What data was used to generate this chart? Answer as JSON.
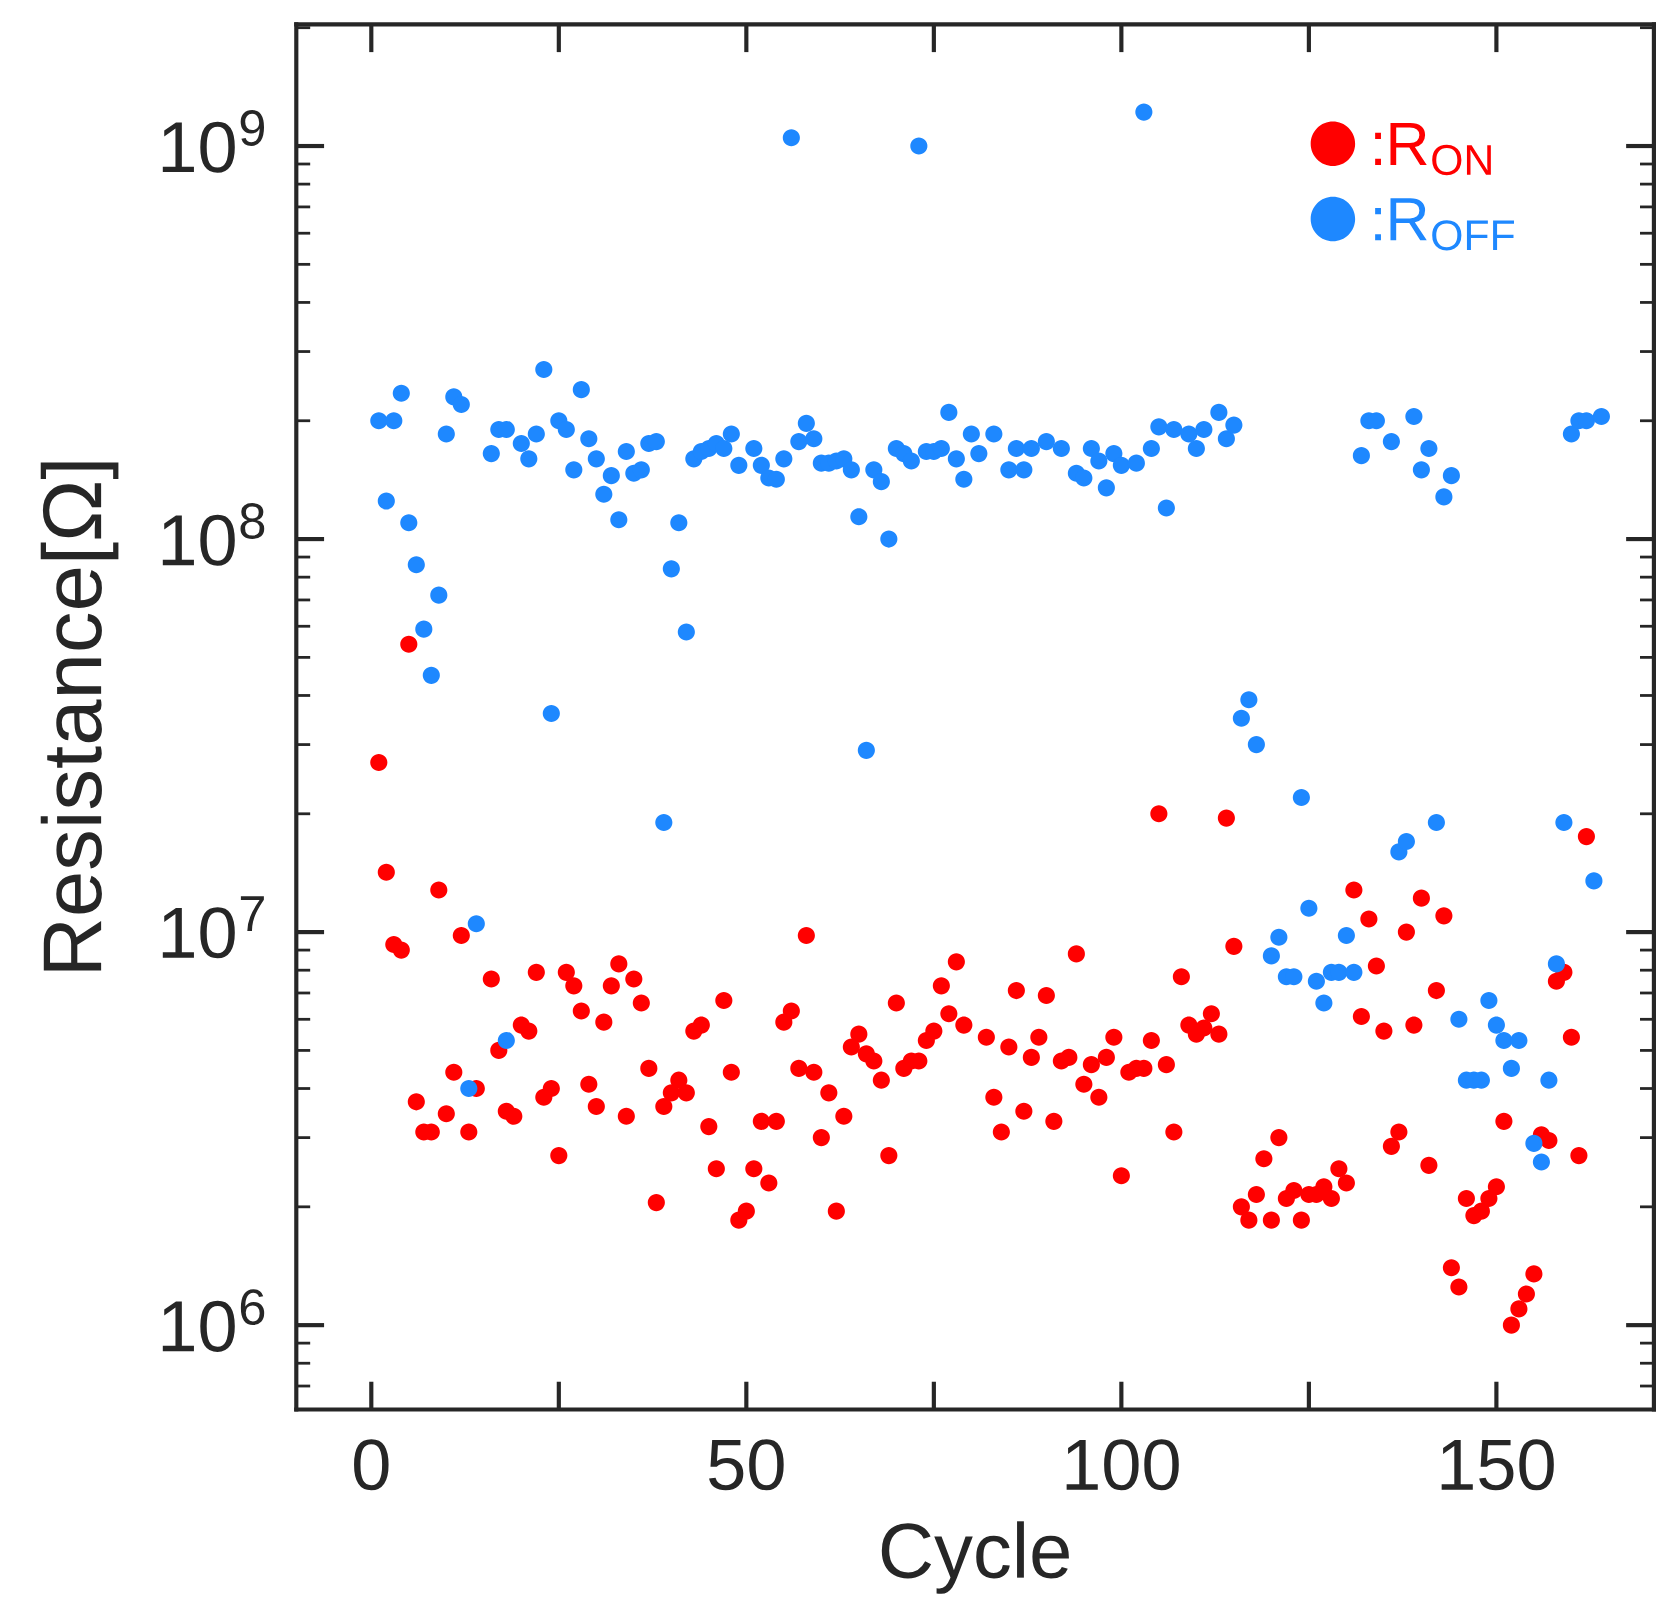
{
  "chart_data": {
    "type": "scatter",
    "xlabel": "Cycle",
    "ylabel": "Resistance[Ω]",
    "xlim": [
      -10,
      171
    ],
    "xticks": [
      0,
      {
        "value": 25,
        "label": null
      },
      50,
      {
        "value": 75,
        "label": null
      },
      100,
      {
        "value": 125,
        "label": null
      },
      150
    ],
    "ylim": [
      610000,
      2040000000
    ],
    "yticks": [
      {
        "value": 1000000,
        "label": "10$^{6}$"
      },
      {
        "value": 10000000,
        "label": "10$^{7}$"
      },
      {
        "value": 100000000,
        "label": "10$^{8}$"
      },
      {
        "value": 1000000000,
        "label": "10$^{9}$"
      }
    ],
    "log": "y",
    "grid": false,
    "legend": "top right",
    "marker": "circle",
    "series": [
      {
        "name": ":R$_{ON}$",
        "color": "#ff0000",
        "x": [
          1,
          2,
          3,
          4,
          5,
          6,
          7,
          8,
          9,
          10,
          11,
          12,
          13,
          14,
          16,
          17,
          18,
          19,
          20,
          21,
          22,
          23,
          24,
          25,
          26,
          27,
          28,
          29,
          30,
          31,
          32,
          33,
          34,
          35,
          36,
          37,
          38,
          39,
          40,
          41,
          42,
          43,
          44,
          45,
          46,
          47,
          48,
          49,
          50,
          51,
          52,
          53,
          54,
          55,
          56,
          57,
          58,
          59,
          60,
          61,
          62,
          63,
          64,
          65,
          66,
          67,
          68,
          69,
          70,
          71,
          72,
          73,
          74,
          75,
          76,
          77,
          78,
          79,
          82,
          83,
          84,
          85,
          86,
          87,
          88,
          89,
          90,
          91,
          92,
          93,
          94,
          95,
          96,
          97,
          98,
          99,
          100,
          101,
          102,
          103,
          104,
          105,
          106,
          107,
          108,
          109,
          110,
          111,
          112,
          113,
          114,
          115,
          116,
          117,
          118,
          119,
          120,
          121,
          122,
          123,
          124,
          125,
          126,
          127,
          128,
          129,
          130,
          131,
          132,
          133,
          134,
          135,
          136,
          137,
          138,
          139,
          140,
          141,
          142,
          143,
          144,
          145,
          146,
          147,
          148,
          149,
          150,
          151,
          152,
          153,
          154,
          155,
          156,
          157,
          158,
          159,
          160,
          161,
          162
        ],
        "values": [
          27000000,
          14200000,
          9300000,
          9000000,
          54000000,
          3700000,
          3100000,
          3100000,
          12800000,
          3450000,
          4400000,
          9800000,
          3100000,
          4000000,
          7600000,
          5000000,
          3500000,
          3400000,
          5800000,
          5600000,
          7900000,
          3800000,
          4000000,
          2700000,
          7900000,
          7300000,
          6300000,
          4100000,
          3600000,
          5900000,
          7300000,
          8300000,
          3400000,
          7600000,
          6600000,
          4500000,
          2050000,
          3600000,
          3900000,
          4200000,
          3900000,
          5600000,
          5800000,
          3200000,
          2500000,
          6700000,
          4400000,
          1850000,
          1950000,
          2500000,
          3300000,
          2300000,
          3300000,
          5900000,
          6300000,
          4500000,
          9800000,
          4400000,
          3000000,
          3900000,
          1950000,
          3400000,
          5100000,
          5500000,
          4900000,
          4700000,
          4200000,
          2700000,
          6600000,
          4500000,
          4700000,
          4700000,
          5300000,
          5600000,
          7300000,
          6200000,
          8400000,
          5800000,
          5400000,
          3800000,
          3100000,
          5100000,
          7100000,
          3500000,
          4800000,
          5400000,
          6900000,
          3300000,
          4700000,
          4800000,
          8800000,
          4100000,
          4600000,
          3800000,
          4800000,
          5400000,
          2400000,
          4400000,
          4500000,
          4500000,
          5300000,
          20000000,
          4600000,
          3100000,
          7700000,
          5800000,
          5500000,
          5700000,
          6200000,
          5500000,
          19500000,
          9200000,
          2000000,
          1850000,
          2150000,
          2650000,
          1850000,
          3000000,
          2100000,
          2200000,
          1850000,
          2150000,
          2150000,
          2250000,
          2100000,
          2500000,
          2300000,
          12800000,
          6100000,
          10800000,
          8200000,
          5600000,
          2850000,
          3100000,
          10000000,
          5800000,
          12200000,
          2550000,
          7100000,
          11000000,
          1400000,
          1250000,
          2100000,
          1900000,
          1950000,
          2100000,
          2250000,
          3300000,
          1000000,
          1100000,
          1200000,
          1350000,
          3050000,
          2950000,
          7500000,
          7900000,
          5400000,
          2700000,
          17500000
        ]
      },
      {
        "name": ":R$_{OFF}$",
        "color": "#1e88ff",
        "x": [
          1,
          2,
          3,
          4,
          5,
          6,
          7,
          8,
          9,
          10,
          11,
          12,
          13,
          14,
          16,
          17,
          18,
          18,
          20,
          21,
          22,
          23,
          24,
          25,
          26,
          27,
          28,
          29,
          30,
          31,
          32,
          33,
          34,
          35,
          36,
          37,
          38,
          39,
          40,
          41,
          42,
          43,
          44,
          45,
          46,
          47,
          48,
          49,
          51,
          52,
          53,
          54,
          55,
          56,
          57,
          58,
          59,
          60,
          61,
          62,
          63,
          64,
          65,
          66,
          67,
          68,
          69,
          70,
          71,
          72,
          73,
          74,
          75,
          76,
          77,
          78,
          79,
          80,
          81,
          83,
          85,
          86,
          87,
          88,
          90,
          92,
          94,
          95,
          96,
          97,
          98,
          99,
          100,
          102,
          103,
          104,
          105,
          106,
          107,
          109,
          110,
          111,
          113,
          114,
          115,
          116,
          117,
          118,
          120,
          121,
          122,
          123,
          124,
          125,
          126,
          127,
          128,
          129,
          130,
          131,
          132,
          133,
          134,
          136,
          137,
          138,
          139,
          140,
          141,
          142,
          143,
          144,
          145,
          146,
          147,
          148,
          149,
          150,
          151,
          152,
          153,
          155,
          156,
          157,
          158,
          159,
          160,
          161,
          162,
          163,
          164
        ],
        "values": [
          200000000,
          125000000,
          200000000,
          235000000,
          110000000,
          86000000,
          59000000,
          45000000,
          72000000,
          185000000,
          230000000,
          220000000,
          4000000,
          10500000,
          165000000,
          190000000,
          190000000,
          5300000,
          175000000,
          160000000,
          185000000,
          270000000,
          36000000,
          200000000,
          190000000,
          150000000,
          240000000,
          180000000,
          160000000,
          130000000,
          145000000,
          112000000,
          167000000,
          147000000,
          150000000,
          175000000,
          177000000,
          19000000,
          84000000,
          110000000,
          58000000,
          160000000,
          167000000,
          170000000,
          175000000,
          170000000,
          185000000,
          154000000,
          170000000,
          154000000,
          143000000,
          142000000,
          160000000,
          1050000000,
          177000000,
          197000000,
          180000000,
          156000000,
          156000000,
          158000000,
          160000000,
          150000000,
          114000000,
          29000000,
          150000000,
          140000000,
          100000000,
          170000000,
          165000000,
          158000000,
          1000000000,
          167000000,
          167000000,
          170000000,
          210000000,
          160000000,
          142000000,
          185000000,
          165000000,
          185000000,
          150000000,
          170000000,
          150000000,
          170000000,
          177000000,
          170000000,
          147000000,
          143000000,
          170000000,
          158000000,
          135000000,
          165000000,
          154000000,
          156000000,
          1220000000,
          170000000,
          193000000,
          120000000,
          190000000,
          185000000,
          170000000,
          190000000,
          210000000,
          180000000,
          195000000,
          35000000,
          39000000,
          30000000,
          8700000,
          9700000,
          7700000,
          7700000,
          22000000,
          11500000,
          7500000,
          6600000,
          7900000,
          7900000,
          9800000,
          7900000,
          163000000,
          200000000,
          200000000,
          177000000,
          16000000,
          17000000,
          205000000,
          150000000,
          170000000,
          19000000,
          128000000,
          145000000,
          6000000,
          4200000,
          4200000,
          4200000,
          6700000,
          5800000,
          5300000,
          4500000,
          5300000,
          2900000,
          2600000,
          4200000,
          8300000,
          19000000,
          185000000,
          200000000,
          200000000,
          13500000,
          205000000
        ]
      }
    ]
  }
}
